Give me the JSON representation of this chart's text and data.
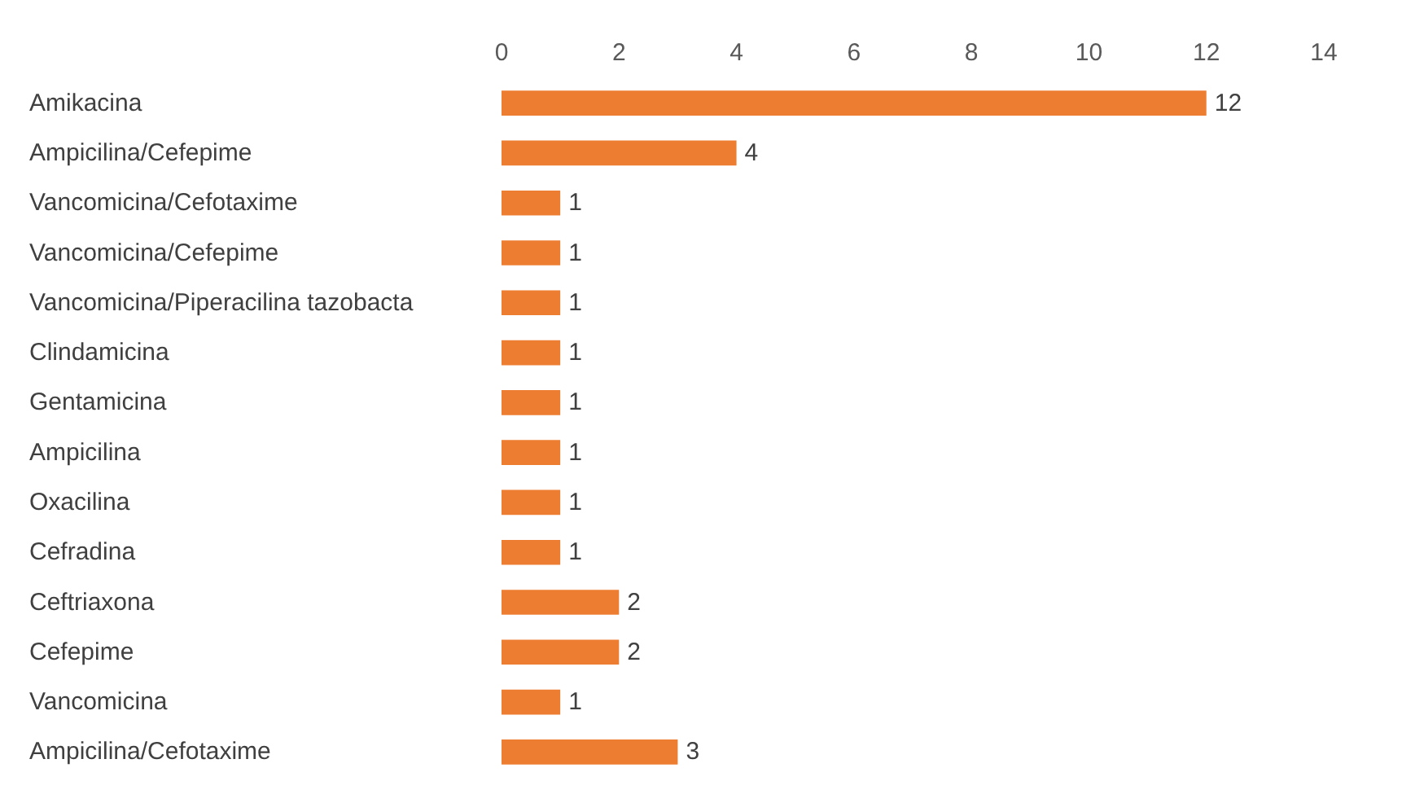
{
  "chart_data": {
    "type": "bar",
    "orientation": "horizontal",
    "categories": [
      "Amikacina",
      "Ampicilina/Cefepime",
      "Vancomicina/Cefotaxime",
      "Vancomicina/Cefepime",
      "Vancomicina/Piperacilina tazobacta",
      "Clindamicina",
      "Gentamicina",
      "Ampicilina",
      "Oxacilina",
      "Cefradina",
      "Ceftriaxona",
      "Cefepime",
      "Vancomicina",
      "Ampicilina/Cefotaxime"
    ],
    "values": [
      12,
      4,
      1,
      1,
      1,
      1,
      1,
      1,
      1,
      1,
      2,
      2,
      1,
      3
    ],
    "color": "#ed7d31",
    "xlim": [
      0,
      14
    ],
    "xticks": [
      0,
      2,
      4,
      6,
      8,
      10,
      12,
      14
    ],
    "grid": false,
    "data_labels": true
  }
}
